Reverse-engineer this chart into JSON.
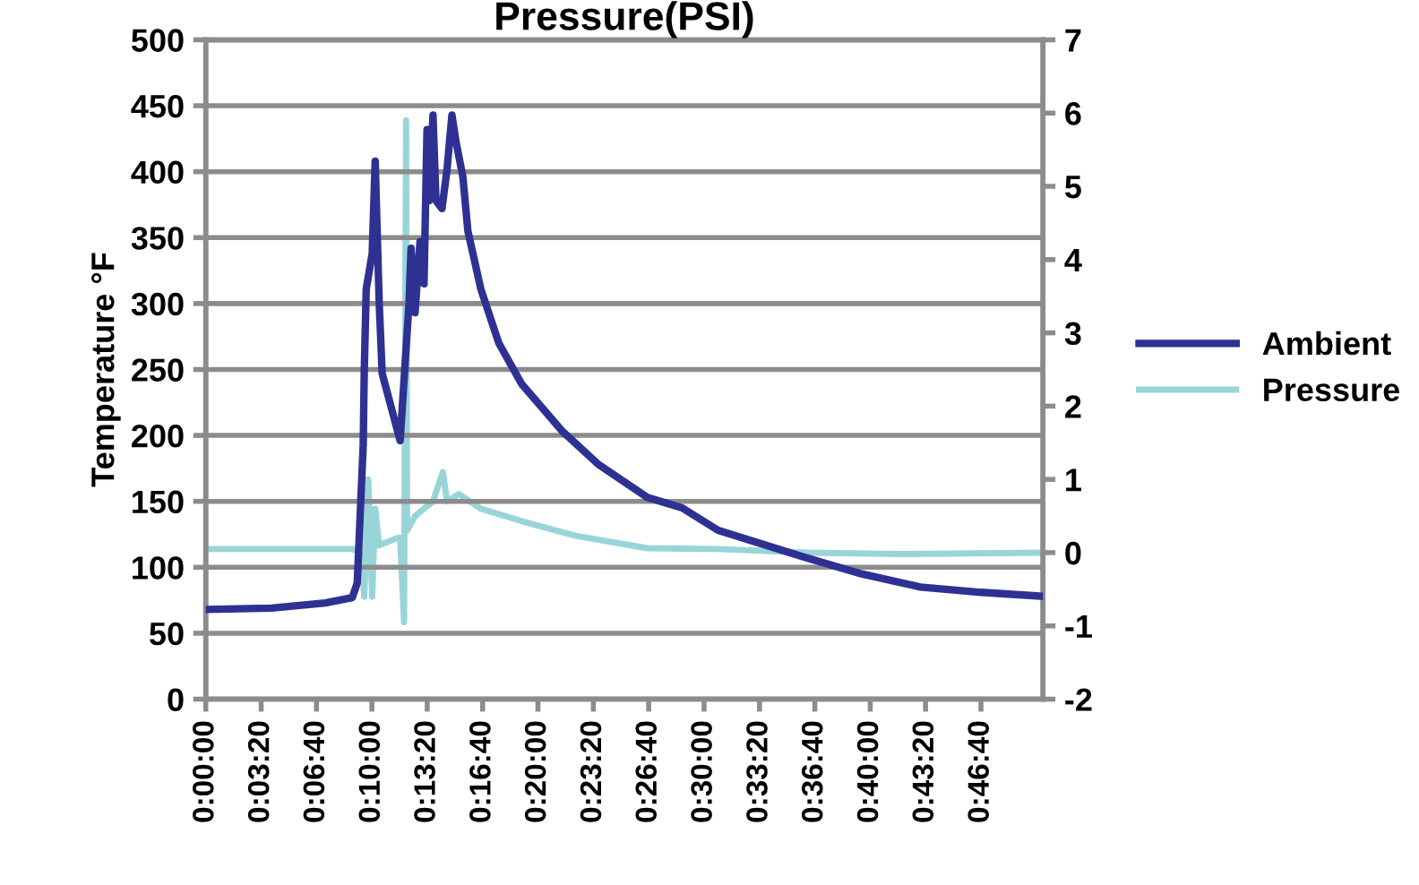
{
  "chart_data": {
    "type": "line",
    "title": "Pressure(PSI)",
    "ylabel": "Temperature °F",
    "xlim": [
      0,
      0.84
    ],
    "ylim": [
      0,
      500
    ],
    "yticks": [
      0,
      50,
      100,
      150,
      200,
      250,
      300,
      350,
      400,
      450,
      500
    ],
    "y2lim": [
      -2,
      7
    ],
    "y2ticks": [
      -2,
      -1,
      0,
      1,
      2,
      3,
      4,
      5,
      6,
      7
    ],
    "xticks": [
      {
        "value": 0,
        "label": "0:00:00"
      },
      {
        "value": 0.0556,
        "label": "0:03:20"
      },
      {
        "value": 0.1111,
        "label": "0:06:40"
      },
      {
        "value": 0.1667,
        "label": "0:10:00"
      },
      {
        "value": 0.2222,
        "label": "0:13:20"
      },
      {
        "value": 0.2778,
        "label": "0:16:40"
      },
      {
        "value": 0.3333,
        "label": "0:20:00"
      },
      {
        "value": 0.3889,
        "label": "0:23:20"
      },
      {
        "value": 0.4444,
        "label": "0:26:40"
      },
      {
        "value": 0.5,
        "label": "0:30:00"
      },
      {
        "value": 0.5556,
        "label": "0:33:20"
      },
      {
        "value": 0.6111,
        "label": "0:36:40"
      },
      {
        "value": 0.6667,
        "label": "0:40:00"
      },
      {
        "value": 0.7222,
        "label": "0:43:20"
      },
      {
        "value": 0.7778,
        "label": "0:46:40"
      }
    ],
    "grid": "y",
    "legend": "right",
    "line_style": "solid",
    "marker": "none",
    "series": [
      {
        "name": "Ambient",
        "color": "#2e3192",
        "x": [
          0,
          0.066,
          0.12,
          0.147,
          0.152,
          0.158,
          0.159,
          0.161,
          0.167,
          0.17,
          0.174,
          0.177,
          0.195,
          0.204,
          0.206,
          0.21,
          0.215,
          0.219,
          0.222,
          0.224,
          0.228,
          0.231,
          0.237,
          0.242,
          0.247,
          0.251,
          0.258,
          0.263,
          0.276,
          0.294,
          0.317,
          0.358,
          0.394,
          0.443,
          0.478,
          0.514,
          0.599,
          0.658,
          0.717,
          0.778,
          0.84
        ],
        "values": [
          68,
          69,
          73,
          77,
          88,
          193,
          247,
          311,
          338,
          408,
          301,
          247,
          196,
          301,
          342,
          293,
          347,
          315,
          432,
          378,
          443,
          378,
          372,
          401,
          443,
          423,
          396,
          355,
          311,
          270,
          239,
          203,
          178,
          153,
          145,
          128,
          108,
          95,
          85,
          81,
          78
        ]
      },
      {
        "name": "Pressure",
        "color": "#99d5d8",
        "axis": "y2",
        "x": [
          0,
          0.147,
          0.156,
          0.159,
          0.163,
          0.167,
          0.17,
          0.174,
          0.192,
          0.195,
          0.199,
          0.201,
          0.202,
          0.21,
          0.219,
          0.228,
          0.238,
          0.242,
          0.254,
          0.276,
          0.317,
          0.371,
          0.443,
          0.514,
          0.604,
          0.694,
          0.84
        ],
        "values": [
          0.05,
          0.05,
          0,
          -0.6,
          1.0,
          -0.6,
          0.6,
          0.1,
          0.2,
          0.2,
          -0.95,
          5.9,
          0.3,
          0.5,
          0.6,
          0.7,
          1.1,
          0.7,
          0.8,
          0.6,
          0.43,
          0.23,
          0.06,
          0.05,
          0,
          -0.02,
          0
        ]
      }
    ]
  }
}
